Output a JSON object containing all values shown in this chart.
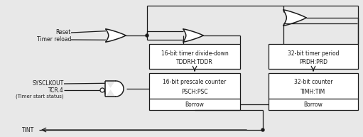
{
  "bg_color": "#e8e8e8",
  "line_color": "#1a1a1a",
  "box_fill": "#ffffff",
  "labels": {
    "reset": "Reset",
    "timer_reload": "Timer reload",
    "sysclkout": "SYSCLKOUT",
    "tcr4": "TCR.4",
    "timer_start": "(Timer start status)",
    "tint": "TINT",
    "box1_line1": "16-bit timer divide-down",
    "box1_line2": "TDDRH:TDDR",
    "box2_line1": "16-bit prescale counter",
    "box2_line2": "PSCH:PSC",
    "box2_line3": "Borrow",
    "box3_line1": "32-bit timer period",
    "box3_line2": "PRDH:PRD",
    "box4_line1": "32-bit counter",
    "box4_line2": "TIMH:TIM",
    "box4_line3": "Borrow"
  },
  "font_size": 5.5,
  "small_font_size": 5.0,
  "lw": 0.9
}
